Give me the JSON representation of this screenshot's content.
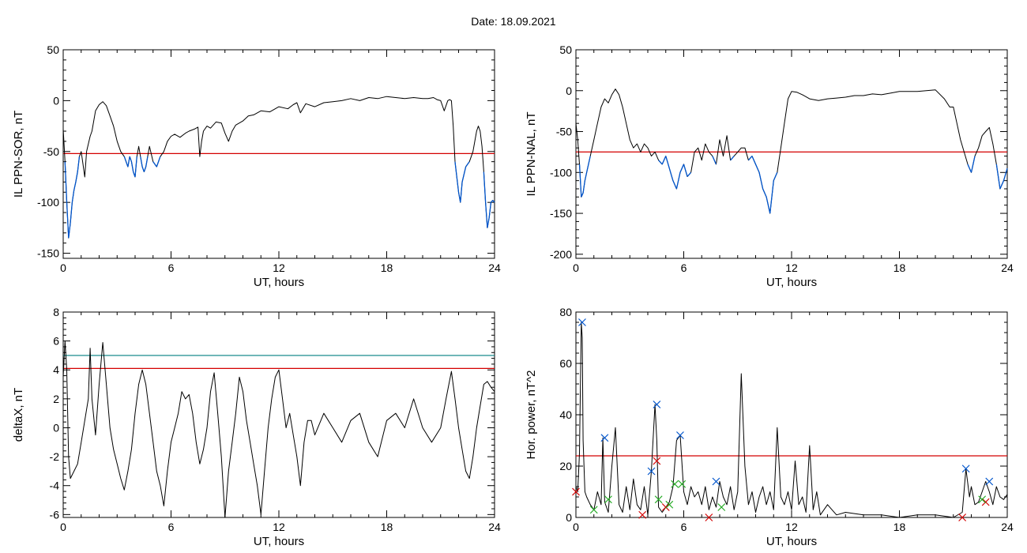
{
  "figure": {
    "title": "Date:  18.09.2021",
    "background": "#ffffff"
  },
  "chart_data": [
    {
      "id": "sor",
      "type": "line",
      "ylabel": "IL PPN-SOR, nT",
      "xlabel": "UT, hours",
      "xlim": [
        0,
        24
      ],
      "ylim": [
        -155,
        50
      ],
      "xticks": [
        0,
        6,
        12,
        18,
        24
      ],
      "yticks": [
        -150,
        -100,
        -50,
        0,
        50
      ],
      "threshold": {
        "value": -52,
        "color": "#d40000"
      },
      "line_color": "#000000",
      "below_color": "#0055cc",
      "series": [
        {
          "x": [
            0,
            0.1,
            0.2,
            0.3,
            0.4,
            0.5,
            0.6,
            0.7,
            0.8,
            0.9,
            1.0,
            1.2,
            1.3,
            1.5,
            1.6,
            1.8,
            2.0,
            2.2,
            2.4,
            2.6,
            2.8,
            3.0,
            3.2,
            3.4,
            3.5,
            3.6,
            3.7,
            3.8,
            3.9,
            4.0,
            4.1,
            4.2,
            4.3,
            4.4,
            4.5,
            4.6,
            4.7,
            4.8,
            5.0,
            5.2,
            5.4,
            5.6,
            5.8,
            6.0,
            6.2,
            6.5,
            6.8,
            7.0,
            7.3,
            7.5,
            7.6,
            7.7,
            7.8,
            8.0,
            8.2,
            8.5,
            8.8,
            9.0,
            9.2,
            9.4,
            9.6,
            9.8,
            10.0,
            10.3,
            10.6,
            11.0,
            11.5,
            12.0,
            12.5,
            12.8,
            13.0,
            13.2,
            13.5,
            14.0,
            14.5,
            15.0,
            15.5,
            16.0,
            16.5,
            17.0,
            17.5,
            18.0,
            18.5,
            19.0,
            19.5,
            20.0,
            20.3,
            20.6,
            20.8,
            21.0,
            21.2,
            21.4,
            21.5,
            21.6,
            21.7,
            21.8,
            21.9,
            22.0,
            22.1,
            22.2,
            22.4,
            22.6,
            22.8,
            23.0,
            23.1,
            23.2,
            23.3,
            23.4,
            23.5,
            23.6,
            23.7,
            23.8,
            23.9,
            24.0
          ],
          "y": [
            -28,
            -60,
            -100,
            -135,
            -120,
            -100,
            -88,
            -80,
            -70,
            -55,
            -50,
            -75,
            -50,
            -35,
            -30,
            -10,
            -4,
            -1,
            -5,
            -15,
            -25,
            -40,
            -50,
            -55,
            -60,
            -65,
            -55,
            -60,
            -70,
            -75,
            -55,
            -45,
            -55,
            -65,
            -70,
            -65,
            -55,
            -45,
            -60,
            -65,
            -55,
            -50,
            -40,
            -35,
            -33,
            -36,
            -32,
            -30,
            -28,
            -26,
            -55,
            -40,
            -30,
            -25,
            -27,
            -21,
            -22,
            -32,
            -40,
            -30,
            -24,
            -22,
            -20,
            -15,
            -14,
            -10,
            -11,
            -6,
            -8,
            -4,
            -2,
            -12,
            -3,
            -6,
            -2,
            -1,
            0,
            2,
            0,
            3,
            2,
            4,
            3,
            2,
            3,
            2,
            2,
            3,
            1,
            0,
            -10,
            0,
            1,
            0,
            -25,
            -60,
            -75,
            -90,
            -100,
            -80,
            -65,
            -60,
            -50,
            -30,
            -25,
            -30,
            -45,
            -70,
            -100,
            -125,
            -115,
            -100,
            -98,
            -100
          ]
        }
      ]
    },
    {
      "id": "nal",
      "type": "line",
      "ylabel": "IL PPN-NAL, nT",
      "xlabel": "UT, hours",
      "xlim": [
        0,
        24
      ],
      "ylim": [
        -205,
        50
      ],
      "xticks": [
        0,
        6,
        12,
        18,
        24
      ],
      "yticks": [
        -200,
        -150,
        -100,
        -50,
        0,
        50
      ],
      "threshold": {
        "value": -75,
        "color": "#d40000"
      },
      "line_color": "#000000",
      "below_color": "#0055cc",
      "series": [
        {
          "x": [
            0,
            0.1,
            0.2,
            0.3,
            0.4,
            0.5,
            0.6,
            0.8,
            1.0,
            1.2,
            1.4,
            1.6,
            1.8,
            2.0,
            2.2,
            2.4,
            2.6,
            2.8,
            3.0,
            3.2,
            3.4,
            3.6,
            3.8,
            4.0,
            4.2,
            4.4,
            4.6,
            4.8,
            5.0,
            5.2,
            5.4,
            5.6,
            5.8,
            6.0,
            6.2,
            6.4,
            6.6,
            6.8,
            7.0,
            7.2,
            7.4,
            7.6,
            7.8,
            8.0,
            8.2,
            8.4,
            8.6,
            8.8,
            9.0,
            9.2,
            9.4,
            9.6,
            9.8,
            10.0,
            10.2,
            10.4,
            10.6,
            10.8,
            11.0,
            11.2,
            11.4,
            11.6,
            11.8,
            12.0,
            12.3,
            12.6,
            13.0,
            13.5,
            14.0,
            14.5,
            15.0,
            15.5,
            16.0,
            16.5,
            17.0,
            17.5,
            18.0,
            18.5,
            19.0,
            19.5,
            20.0,
            20.5,
            20.8,
            21.0,
            21.2,
            21.4,
            21.6,
            21.8,
            22.0,
            22.2,
            22.4,
            22.6,
            22.8,
            23.0,
            23.2,
            23.4,
            23.6,
            23.8,
            24.0
          ],
          "y": [
            -40,
            -60,
            -90,
            -130,
            -125,
            -110,
            -100,
            -80,
            -60,
            -40,
            -20,
            -10,
            -15,
            -5,
            2,
            -5,
            -20,
            -40,
            -60,
            -70,
            -65,
            -75,
            -65,
            -70,
            -80,
            -75,
            -85,
            -90,
            -80,
            -95,
            -110,
            -120,
            -100,
            -90,
            -105,
            -100,
            -75,
            -70,
            -85,
            -65,
            -75,
            -80,
            -90,
            -60,
            -80,
            -55,
            -85,
            -80,
            -75,
            -70,
            -70,
            -85,
            -80,
            -90,
            -100,
            -120,
            -130,
            -150,
            -110,
            -100,
            -70,
            -40,
            -10,
            -1,
            -2,
            -5,
            -10,
            -12,
            -10,
            -9,
            -8,
            -6,
            -6,
            -4,
            -5,
            -3,
            -1,
            -1,
            -1,
            0,
            1,
            -10,
            -20,
            -20,
            -40,
            -60,
            -75,
            -90,
            -100,
            -80,
            -70,
            -55,
            -50,
            -45,
            -65,
            -90,
            -120,
            -110,
            -95
          ]
        }
      ]
    },
    {
      "id": "deltax",
      "type": "line",
      "ylabel": "deltaX, nT",
      "xlabel": "UT, hours",
      "xlim": [
        0,
        24
      ],
      "ylim": [
        -6.2,
        8
      ],
      "xticks": [
        0,
        6,
        12,
        18,
        24
      ],
      "yticks": [
        -6,
        -4,
        -2,
        0,
        2,
        4,
        6,
        8
      ],
      "thresholds": [
        {
          "value": 5.0,
          "color": "#007f80"
        },
        {
          "value": 4.1,
          "color": "#d40000"
        }
      ],
      "line_color": "#000000",
      "series": [
        {
          "x": [
            0,
            0.1,
            0.2,
            0.3,
            0.4,
            0.6,
            0.8,
            1.0,
            1.2,
            1.4,
            1.5,
            1.6,
            1.8,
            2.0,
            2.2,
            2.4,
            2.6,
            2.8,
            3.0,
            3.2,
            3.4,
            3.6,
            3.8,
            4.0,
            4.2,
            4.4,
            4.6,
            4.8,
            5.0,
            5.2,
            5.4,
            5.6,
            5.8,
            6.0,
            6.2,
            6.4,
            6.6,
            6.8,
            7.0,
            7.2,
            7.4,
            7.6,
            7.8,
            8.0,
            8.2,
            8.4,
            8.6,
            8.8,
            9.0,
            9.2,
            9.4,
            9.6,
            9.8,
            10.0,
            10.2,
            10.4,
            10.6,
            10.8,
            11.0,
            11.2,
            11.4,
            11.6,
            11.8,
            12.0,
            12.2,
            12.4,
            12.6,
            12.8,
            13.0,
            13.2,
            13.4,
            13.6,
            13.8,
            14.0,
            14.5,
            15.0,
            15.5,
            16.0,
            16.5,
            17.0,
            17.5,
            18.0,
            18.5,
            19.0,
            19.5,
            20.0,
            20.5,
            21.0,
            21.3,
            21.6,
            21.8,
            22.0,
            22.2,
            22.4,
            22.6,
            22.8,
            23.0,
            23.2,
            23.4,
            23.6,
            23.8,
            24.0
          ],
          "y": [
            3.5,
            6.0,
            4.0,
            -2.0,
            -3.5,
            -3.0,
            -2.5,
            -1.0,
            0.5,
            2.0,
            5.5,
            2.0,
            -0.5,
            3.0,
            5.9,
            3.0,
            0,
            -1.5,
            -2.5,
            -3.5,
            -4.3,
            -3.0,
            -1.5,
            1.0,
            3.0,
            4.0,
            3.0,
            1.0,
            -1.0,
            -3.0,
            -4.0,
            -5.4,
            -3.0,
            -1.0,
            0.0,
            1.0,
            2.5,
            2.0,
            2.3,
            1.0,
            -1.0,
            -2.5,
            -1.5,
            0.0,
            2.5,
            3.8,
            1.0,
            -2.0,
            -6.2,
            -3.0,
            -1.0,
            1.0,
            3.5,
            2.5,
            0.5,
            -1.0,
            -2.5,
            -4.0,
            -6.0,
            -3.0,
            0.0,
            2.0,
            3.5,
            4.0,
            2.0,
            0.0,
            1.0,
            -0.5,
            -2.0,
            -4.0,
            -1.0,
            0.5,
            0.5,
            -0.5,
            1.0,
            0.0,
            -1.0,
            0.5,
            1.0,
            -1.0,
            -2.0,
            0.5,
            1.0,
            0.0,
            2.0,
            0.0,
            -1.0,
            0.0,
            2.0,
            3.9,
            2.0,
            0.0,
            -1.5,
            -3.0,
            -3.5,
            -2.0,
            0.0,
            1.5,
            3.0,
            3.2,
            2.8,
            2.5
          ]
        }
      ]
    },
    {
      "id": "power",
      "type": "line",
      "ylabel": "Hor. power, nT^2",
      "xlabel": "UT, hours",
      "xlim": [
        0,
        24
      ],
      "ylim": [
        0,
        80
      ],
      "xticks": [
        0,
        6,
        12,
        18,
        24
      ],
      "yticks": [
        0,
        20,
        40,
        60,
        80
      ],
      "threshold": {
        "value": 24,
        "color": "#d40000"
      },
      "line_color": "#000000",
      "series": [
        {
          "x": [
            0,
            0.1,
            0.2,
            0.3,
            0.35,
            0.4,
            0.5,
            0.6,
            0.8,
            1.0,
            1.2,
            1.4,
            1.5,
            1.6,
            1.8,
            2.0,
            2.2,
            2.4,
            2.6,
            2.8,
            3.0,
            3.2,
            3.4,
            3.6,
            3.8,
            4.0,
            4.2,
            4.4,
            4.5,
            4.6,
            4.8,
            5.0,
            5.2,
            5.4,
            5.6,
            5.8,
            6.0,
            6.2,
            6.4,
            6.6,
            6.8,
            7.0,
            7.2,
            7.4,
            7.6,
            7.8,
            8.0,
            8.2,
            8.4,
            8.6,
            8.8,
            9.0,
            9.2,
            9.4,
            9.6,
            9.8,
            10.0,
            10.2,
            10.4,
            10.6,
            10.8,
            11.0,
            11.2,
            11.4,
            11.6,
            11.8,
            12.0,
            12.2,
            12.4,
            12.6,
            12.8,
            13.0,
            13.2,
            13.4,
            13.6,
            14.0,
            14.5,
            15.0,
            16.0,
            17.0,
            18.0,
            19.0,
            20.0,
            21.0,
            21.5,
            21.7,
            21.9,
            22.0,
            22.2,
            22.4,
            22.6,
            22.8,
            23.0,
            23.2,
            23.4,
            23.6,
            23.8,
            24.0
          ],
          "y": [
            12,
            10,
            25,
            76,
            70,
            30,
            10,
            8,
            5,
            3,
            10,
            5,
            31,
            6,
            2,
            20,
            35,
            5,
            2,
            12,
            3,
            15,
            5,
            3,
            12,
            1,
            18,
            44,
            30,
            4,
            2,
            4,
            6,
            12,
            30,
            32,
            10,
            5,
            12,
            8,
            10,
            5,
            12,
            3,
            8,
            4,
            14,
            8,
            5,
            12,
            3,
            10,
            56,
            20,
            5,
            10,
            2,
            8,
            12,
            5,
            10,
            3,
            35,
            8,
            5,
            10,
            3,
            22,
            5,
            8,
            2,
            28,
            3,
            10,
            1,
            5,
            1,
            2,
            1,
            1,
            0,
            1,
            1,
            0,
            2,
            19,
            8,
            12,
            5,
            6,
            10,
            14,
            10,
            5,
            12,
            8,
            7,
            9
          ]
        }
      ],
      "markers": [
        {
          "color": "#0055cc",
          "points": [
            [
              0.35,
              76
            ],
            [
              1.6,
              31
            ],
            [
              4.2,
              18
            ],
            [
              4.5,
              44
            ],
            [
              5.8,
              32
            ],
            [
              7.8,
              14
            ],
            [
              21.7,
              19
            ],
            [
              23.0,
              14
            ]
          ]
        },
        {
          "color": "#d40000",
          "points": [
            [
              0.0,
              10
            ],
            [
              3.7,
              1
            ],
            [
              4.5,
              22
            ],
            [
              5.0,
              4
            ],
            [
              7.4,
              0
            ],
            [
              21.5,
              0
            ],
            [
              22.8,
              6
            ]
          ]
        },
        {
          "color": "#22aa22",
          "points": [
            [
              1.0,
              3
            ],
            [
              1.8,
              7
            ],
            [
              4.6,
              7
            ],
            [
              5.2,
              5
            ],
            [
              5.5,
              13
            ],
            [
              5.9,
              13
            ],
            [
              8.1,
              4
            ],
            [
              22.6,
              7
            ]
          ]
        }
      ]
    }
  ]
}
